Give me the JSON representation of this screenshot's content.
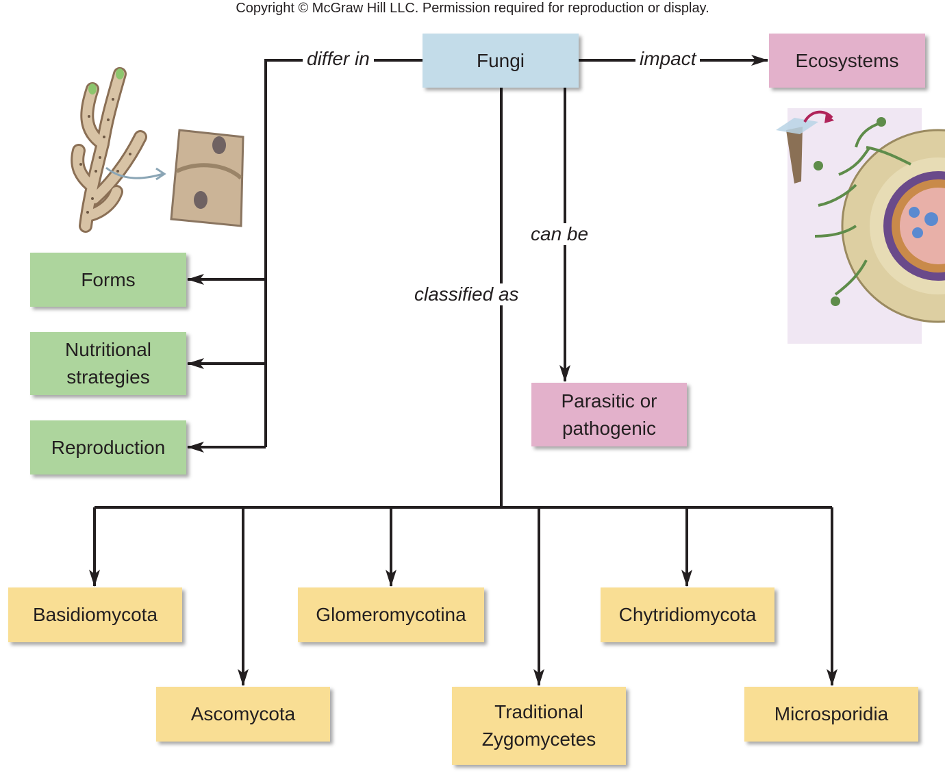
{
  "copyright": "Copyright © McGraw Hill LLC. Permission required for reproduction or display.",
  "nodes": {
    "fungi": "Fungi",
    "ecosystems": "Ecosystems",
    "forms": "Forms",
    "nutritional_strategies": "Nutritional strategies",
    "reproduction": "Reproduction",
    "parasitic": "Parasitic or pathogenic",
    "basidiomycota": "Basidiomycota",
    "ascomycota": "Ascomycota",
    "glomeromycotina": "Glomeromycotina",
    "traditional_zygomycetes": "Traditional Zygomycetes",
    "chytridiomycota": "Chytridiomycota",
    "microsporidia": "Microsporidia"
  },
  "edge_labels": {
    "differ_in": "differ in",
    "impact": "impact",
    "can_be": "can be",
    "classified_as": "classified as"
  },
  "colors": {
    "root": "#c3dce9",
    "outcome": "#e3b1cb",
    "trait": "#add59d",
    "group": "#f9de94",
    "line": "#231f20"
  }
}
